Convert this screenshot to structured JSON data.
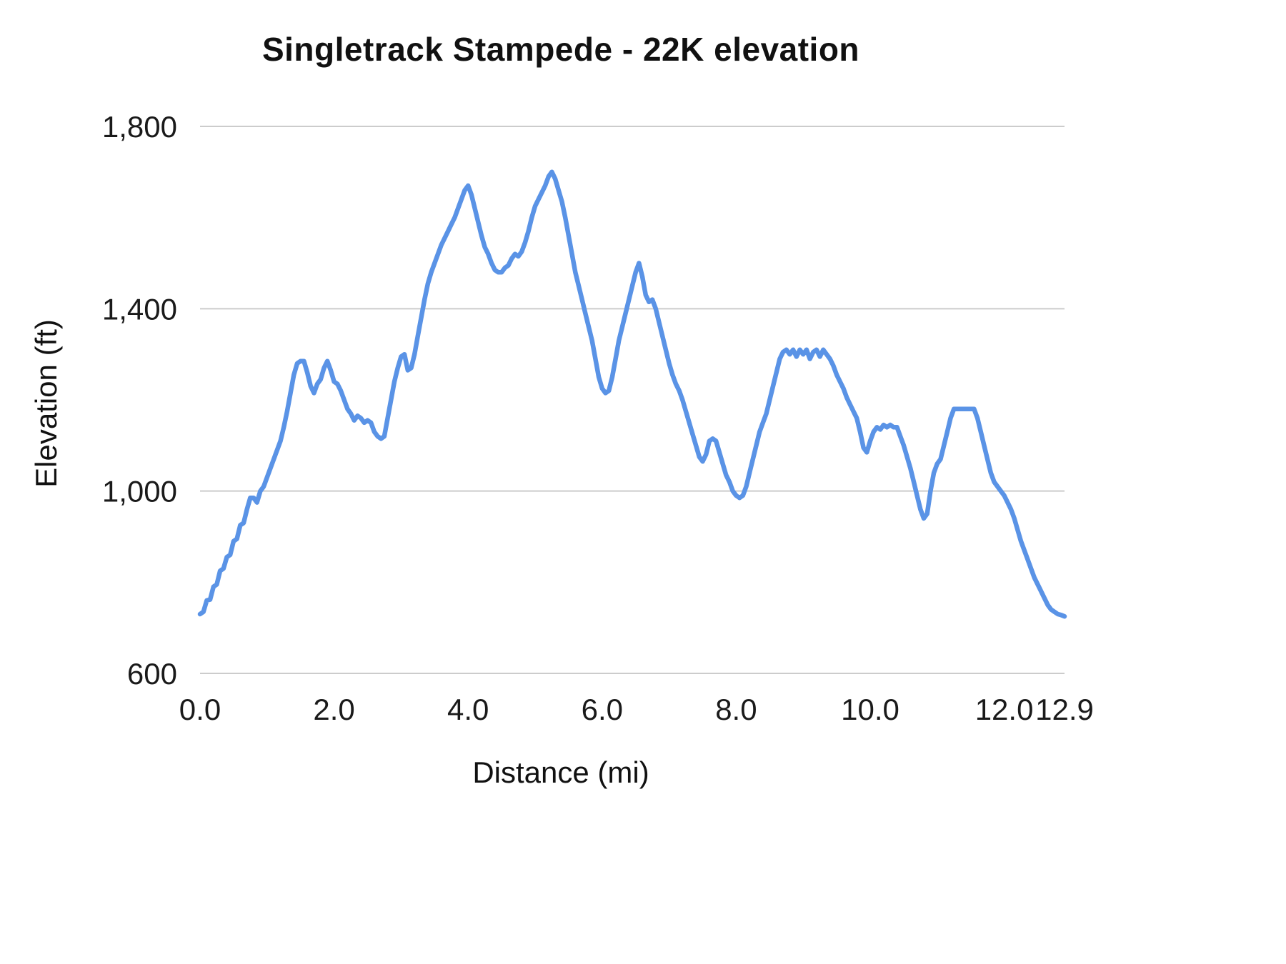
{
  "page": {
    "background": "#ffffff"
  },
  "chart_data": {
    "type": "line",
    "title": "Singletrack Stampede - 22K elevation",
    "xlabel": "Distance (mi)",
    "ylabel": "Elevation (ft)",
    "xlim": [
      0,
      12.9
    ],
    "ylim": [
      600,
      1800
    ],
    "grid": "horizontal",
    "grid_color": "#cccccc",
    "legend": "none",
    "x_ticks": [
      {
        "value": 0,
        "label": "0.0"
      },
      {
        "value": 2,
        "label": "2.0"
      },
      {
        "value": 4,
        "label": "4.0"
      },
      {
        "value": 6,
        "label": "6.0"
      },
      {
        "value": 8,
        "label": "8.0"
      },
      {
        "value": 10,
        "label": "10.0"
      },
      {
        "value": 12,
        "label": "12.0"
      },
      {
        "value": 12.9,
        "label": "12.9"
      }
    ],
    "y_ticks": [
      {
        "value": 600,
        "label": "600"
      },
      {
        "value": 1000,
        "label": "1,000"
      },
      {
        "value": 1400,
        "label": "1,400"
      },
      {
        "value": 1800,
        "label": "1,800"
      }
    ],
    "series": [
      {
        "name": "Elevation",
        "color": "#5a93e6",
        "x_start": 0,
        "x_step": 0.05,
        "values": [
          730,
          735,
          760,
          762,
          790,
          795,
          825,
          830,
          855,
          860,
          890,
          895,
          925,
          930,
          960,
          985,
          985,
          975,
          1000,
          1010,
          1030,
          1050,
          1070,
          1090,
          1110,
          1140,
          1175,
          1215,
          1255,
          1280,
          1285,
          1285,
          1260,
          1230,
          1215,
          1235,
          1245,
          1270,
          1285,
          1265,
          1240,
          1235,
          1220,
          1200,
          1180,
          1170,
          1155,
          1165,
          1160,
          1150,
          1155,
          1150,
          1130,
          1120,
          1115,
          1120,
          1160,
          1200,
          1240,
          1270,
          1295,
          1300,
          1265,
          1270,
          1300,
          1340,
          1380,
          1420,
          1455,
          1480,
          1500,
          1520,
          1540,
          1555,
          1570,
          1585,
          1600,
          1620,
          1640,
          1660,
          1670,
          1650,
          1620,
          1590,
          1560,
          1535,
          1520,
          1500,
          1485,
          1480,
          1480,
          1490,
          1495,
          1510,
          1520,
          1515,
          1525,
          1545,
          1570,
          1600,
          1625,
          1640,
          1655,
          1670,
          1690,
          1700,
          1685,
          1660,
          1635,
          1600,
          1560,
          1520,
          1480,
          1450,
          1420,
          1390,
          1360,
          1330,
          1290,
          1250,
          1225,
          1215,
          1220,
          1250,
          1290,
          1330,
          1360,
          1390,
          1420,
          1450,
          1480,
          1500,
          1470,
          1430,
          1415,
          1420,
          1400,
          1370,
          1340,
          1310,
          1280,
          1255,
          1235,
          1220,
          1200,
          1175,
          1150,
          1125,
          1100,
          1075,
          1065,
          1080,
          1110,
          1115,
          1110,
          1085,
          1060,
          1035,
          1020,
          1000,
          990,
          985,
          990,
          1010,
          1040,
          1070,
          1100,
          1130,
          1150,
          1170,
          1200,
          1230,
          1260,
          1290,
          1305,
          1310,
          1300,
          1310,
          1295,
          1310,
          1300,
          1310,
          1290,
          1305,
          1310,
          1295,
          1310,
          1300,
          1290,
          1275,
          1255,
          1240,
          1225,
          1205,
          1190,
          1175,
          1160,
          1130,
          1095,
          1085,
          1110,
          1130,
          1140,
          1135,
          1145,
          1140,
          1145,
          1140,
          1140,
          1120,
          1100,
          1075,
          1050,
          1020,
          990,
          960,
          940,
          950,
          1000,
          1040,
          1060,
          1070,
          1100,
          1130,
          1160,
          1180,
          1180,
          1180,
          1180,
          1180,
          1180,
          1180,
          1160,
          1130,
          1100,
          1070,
          1040,
          1020,
          1010,
          1000,
          990,
          975,
          960,
          940,
          915,
          890,
          870,
          850,
          830,
          810,
          795,
          780,
          765,
          750,
          740,
          735,
          730,
          728,
          725
        ]
      }
    ]
  }
}
